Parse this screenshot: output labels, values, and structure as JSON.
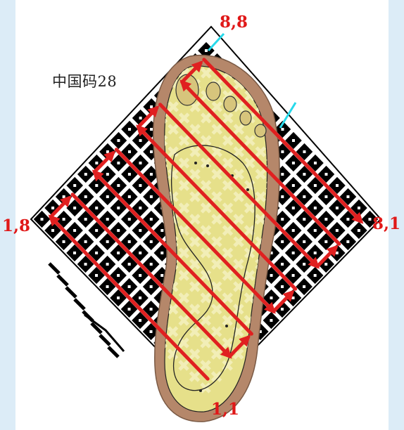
{
  "size_label": "中国码28",
  "corners": {
    "top": "8,8",
    "left": "1,8",
    "right": "8,1",
    "bottom": "1,1"
  },
  "colors": {
    "page_background": "#dcecf7",
    "paper": "#ffffff",
    "grid_black": "#000000",
    "insole_outer": "#b5876a",
    "insole_inner": "#e6e08a",
    "mesh_cross": "#f2eeb7",
    "arrows": "#e02020",
    "tick_marks": "#26d9ea",
    "corner_labels": "#e01818"
  },
  "diagram": {
    "type": "diagonal checker mat with foot insole overlay and zigzag scan arrows",
    "grid_size": 8
  }
}
